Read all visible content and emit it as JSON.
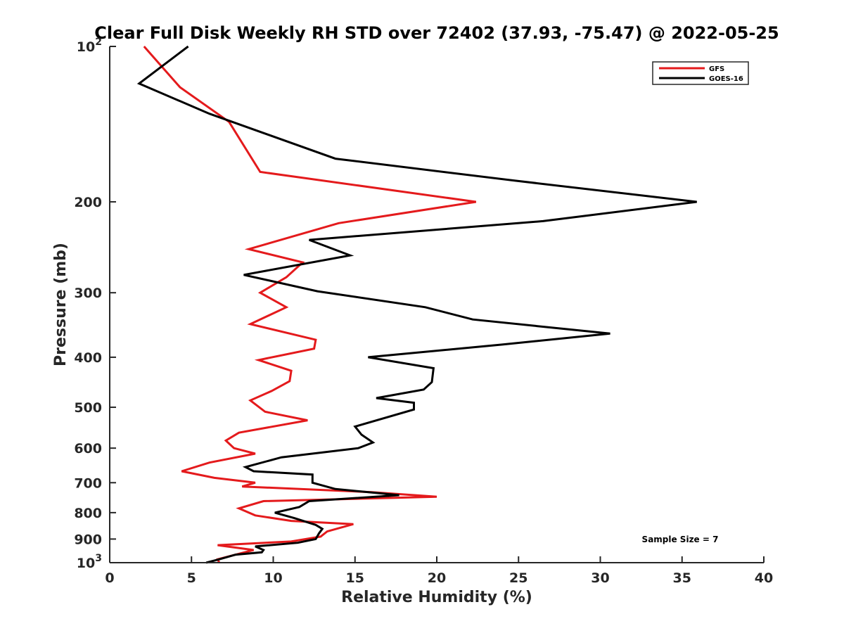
{
  "chart_data": {
    "type": "line",
    "title": "Clear Full Disk Weekly RH STD over 72402 (37.93, -75.47) @ 2022-05-25",
    "xlabel": "Relative Humidity (%)",
    "ylabel": "Pressure (mb)",
    "xlim": [
      0,
      40
    ],
    "ylim": [
      100,
      1000
    ],
    "yscale": "log",
    "y_reversed": true,
    "grid": false,
    "x_ticks": [
      0,
      5,
      10,
      15,
      20,
      25,
      30,
      35,
      40
    ],
    "x_tick_labels": [
      "0",
      "5",
      "10",
      "15",
      "20",
      "25",
      "30",
      "35",
      "40"
    ],
    "y_ticks": [
      100,
      200,
      300,
      400,
      500,
      600,
      700,
      800,
      900,
      1000
    ],
    "y_tick_labels": [
      {
        "base": "10",
        "exp": "2"
      },
      {
        "base": "200",
        "exp": ""
      },
      {
        "base": "300",
        "exp": ""
      },
      {
        "base": "400",
        "exp": ""
      },
      {
        "base": "500",
        "exp": ""
      },
      {
        "base": "600",
        "exp": ""
      },
      {
        "base": "700",
        "exp": ""
      },
      {
        "base": "800",
        "exp": ""
      },
      {
        "base": "900",
        "exp": ""
      },
      {
        "base": "10",
        "exp": "3"
      }
    ],
    "legend_position": "top-right",
    "annotation": "Sample Size = 7",
    "series": [
      {
        "name": "GFS",
        "color": "#e41a1c",
        "points": [
          [
            2.1,
            100
          ],
          [
            4.3,
            120
          ],
          [
            7.3,
            140
          ],
          [
            9.2,
            175
          ],
          [
            22.4,
            200
          ],
          [
            14.0,
            220
          ],
          [
            8.5,
            247
          ],
          [
            11.8,
            262
          ],
          [
            10.8,
            280
          ],
          [
            9.2,
            300
          ],
          [
            10.8,
            320
          ],
          [
            8.6,
            345
          ],
          [
            12.6,
            370
          ],
          [
            12.5,
            385
          ],
          [
            9.1,
            405
          ],
          [
            11.1,
            425
          ],
          [
            11.0,
            445
          ],
          [
            9.9,
            465
          ],
          [
            8.6,
            485
          ],
          [
            9.5,
            510
          ],
          [
            12.1,
            530
          ],
          [
            7.9,
            560
          ],
          [
            7.1,
            580
          ],
          [
            7.6,
            600
          ],
          [
            8.9,
            615
          ],
          [
            6.1,
            640
          ],
          [
            4.4,
            665
          ],
          [
            6.4,
            685
          ],
          [
            8.9,
            700
          ],
          [
            8.1,
            712
          ],
          [
            16.0,
            730
          ],
          [
            20.0,
            745
          ],
          [
            9.4,
            760
          ],
          [
            7.9,
            785
          ],
          [
            8.9,
            810
          ],
          [
            11.1,
            830
          ],
          [
            14.9,
            842
          ],
          [
            13.3,
            870
          ],
          [
            12.9,
            890
          ],
          [
            11.1,
            910
          ],
          [
            6.6,
            925
          ],
          [
            8.8,
            945
          ],
          [
            6.6,
            985
          ],
          [
            6.7,
            1000
          ]
        ]
      },
      {
        "name": "GOES-16",
        "color": "#000000",
        "points": [
          [
            4.8,
            100
          ],
          [
            1.8,
            118
          ],
          [
            6.1,
            135
          ],
          [
            13.8,
            165
          ],
          [
            24.8,
            182
          ],
          [
            35.9,
            200
          ],
          [
            26.5,
            218
          ],
          [
            12.2,
            237
          ],
          [
            14.7,
            254
          ],
          [
            8.2,
            277
          ],
          [
            12.7,
            298
          ],
          [
            19.3,
            320
          ],
          [
            22.2,
            338
          ],
          [
            30.6,
            360
          ],
          [
            24.0,
            378
          ],
          [
            15.8,
            400
          ],
          [
            19.8,
            420
          ],
          [
            19.7,
            447
          ],
          [
            19.2,
            462
          ],
          [
            16.3,
            480
          ],
          [
            18.6,
            490
          ],
          [
            18.6,
            505
          ],
          [
            15.0,
            545
          ],
          [
            15.4,
            565
          ],
          [
            16.1,
            585
          ],
          [
            15.2,
            600
          ],
          [
            10.5,
            625
          ],
          [
            8.3,
            653
          ],
          [
            8.8,
            665
          ],
          [
            12.4,
            675
          ],
          [
            12.4,
            700
          ],
          [
            13.8,
            720
          ],
          [
            17.7,
            740
          ],
          [
            12.2,
            760
          ],
          [
            11.6,
            780
          ],
          [
            10.1,
            800
          ],
          [
            11.3,
            820
          ],
          [
            12.6,
            845
          ],
          [
            13.0,
            860
          ],
          [
            12.8,
            877
          ],
          [
            12.6,
            900
          ],
          [
            11.5,
            915
          ],
          [
            8.9,
            930
          ],
          [
            9.4,
            945
          ],
          [
            9.3,
            955
          ],
          [
            7.7,
            965
          ],
          [
            6.7,
            985
          ],
          [
            5.9,
            1000
          ]
        ]
      }
    ]
  }
}
